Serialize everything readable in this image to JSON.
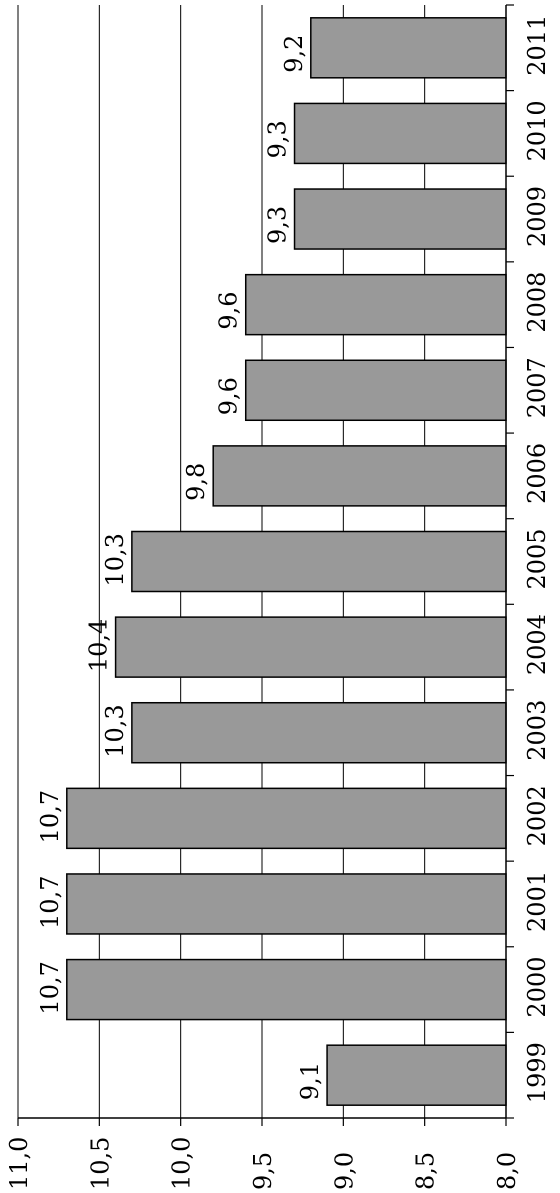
{
  "chart_data": {
    "type": "bar",
    "orientation": "rotated-90",
    "categories": [
      "1999",
      "2000",
      "2001",
      "2002",
      "2003",
      "2004",
      "2005",
      "2006",
      "2007",
      "2008",
      "2009",
      "2010",
      "2011"
    ],
    "values": [
      9.1,
      10.7,
      10.7,
      10.7,
      10.3,
      10.4,
      10.3,
      9.8,
      9.6,
      9.6,
      9.3,
      9.3,
      9.2
    ],
    "value_labels": [
      "9,1",
      "10,7",
      "10,7",
      "10,7",
      "10,3",
      "10,4",
      "10,3",
      "9,8",
      "9,6",
      "9,6",
      "9,3",
      "9,3",
      "9,2"
    ],
    "ylim": [
      8.0,
      11.0
    ],
    "y_ticks": [
      8.0,
      8.5,
      9.0,
      9.5,
      10.0,
      10.5,
      11.0
    ],
    "y_tick_labels": [
      "8,0",
      "8,5",
      "9,0",
      "9,5",
      "10,0",
      "10,5",
      "11,0"
    ],
    "grid": true,
    "colors": {
      "bar": "#999999",
      "grid": "#000000"
    }
  }
}
